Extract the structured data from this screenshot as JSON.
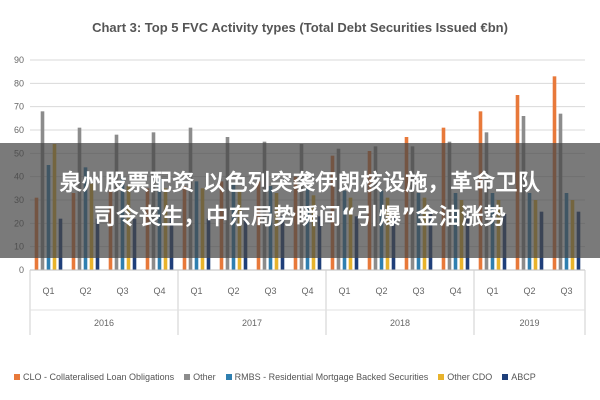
{
  "overlay": {
    "line1": "泉州股票配资 以色列突袭伊朗核设施，革命卫队",
    "line2": "司令丧生，中东局势瞬间“引爆”金油涨势"
  },
  "chart_data": {
    "type": "bar",
    "title": "Chart 3: Top 5 FVC Activity types (Total Debt Securities Issued €bn)",
    "xlabel": "",
    "ylabel": "",
    "ylim": [
      0,
      90
    ],
    "yticks": [
      0,
      10,
      20,
      30,
      40,
      50,
      60,
      70,
      80,
      90
    ],
    "grid": true,
    "legend_position": "bottom",
    "categories": [
      "Q1",
      "Q2",
      "Q3",
      "Q4",
      "Q1",
      "Q2",
      "Q3",
      "Q4",
      "Q1",
      "Q2",
      "Q3",
      "Q4",
      "Q1",
      "Q2",
      "Q3"
    ],
    "groups": [
      {
        "label": "2016",
        "start": 0,
        "count": 4
      },
      {
        "label": "2017",
        "start": 4,
        "count": 4
      },
      {
        "label": "2018",
        "start": 8,
        "count": 4
      },
      {
        "label": "2019",
        "start": 12,
        "count": 3
      }
    ],
    "series": [
      {
        "name": "CLO - Collateralised Loan Obligations",
        "color": "#e8793a",
        "values": [
          31,
          33,
          34,
          35,
          36,
          38,
          38,
          40,
          49,
          51,
          57,
          61,
          68,
          75,
          83
        ]
      },
      {
        "name": "Other",
        "color": "#8c8c8c",
        "values": [
          68,
          61,
          58,
          59,
          61,
          57,
          55,
          54,
          52,
          53,
          53,
          55,
          59,
          66,
          67
        ]
      },
      {
        "name": "RMBS - Residential Mortgage Backed Securities",
        "color": "#2f7fb0",
        "values": [
          45,
          44,
          40,
          39,
          38,
          37,
          36,
          35,
          34,
          34,
          33,
          33,
          33,
          33,
          33
        ]
      },
      {
        "name": "Other CDO",
        "color": "#e8b32c",
        "values": [
          54,
          37,
          36,
          35,
          35,
          34,
          33,
          32,
          31,
          31,
          31,
          30,
          30,
          30,
          30
        ]
      },
      {
        "name": "ABCP",
        "color": "#1f3f7a",
        "values": [
          22,
          22,
          22,
          23,
          22,
          22,
          23,
          23,
          23,
          23,
          24,
          24,
          24,
          25,
          25
        ]
      }
    ]
  }
}
